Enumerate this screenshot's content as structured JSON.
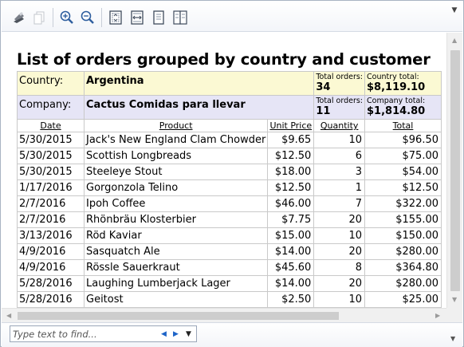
{
  "toolbar": {
    "buttons": [
      "print-icon",
      "copy-icon",
      "zoom-in-icon",
      "zoom-out-icon",
      "one-page-view-icon",
      "page-width-icon",
      "single-page-icon",
      "two-page-icon"
    ],
    "accent_color": "#2e5e9e"
  },
  "report": {
    "title": "List of orders grouped by country and customer",
    "country": {
      "label": "Country:",
      "name": "Argentina",
      "total_orders_label": "Total orders:",
      "total_orders": "34",
      "country_total_label": "Country total:",
      "country_total": "$8,119.10"
    },
    "company": {
      "label": "Company:",
      "name": "Cactus Comidas para llevar",
      "total_orders_label": "Total orders:",
      "total_orders": "11",
      "company_total_label": "Company total:",
      "company_total": "$1,814.80"
    },
    "columns": {
      "date": "Date",
      "product": "Product",
      "unit_price": "Unit Price",
      "quantity": "Quantity",
      "total": "Total"
    },
    "rows": [
      {
        "date": "5/30/2015",
        "product": "Jack's New England Clam Chowder",
        "unit_price": "$9.65",
        "quantity": "10",
        "total": "$96.50"
      },
      {
        "date": "5/30/2015",
        "product": "Scottish Longbreads",
        "unit_price": "$12.50",
        "quantity": "6",
        "total": "$75.00"
      },
      {
        "date": "5/30/2015",
        "product": "Steeleye Stout",
        "unit_price": "$18.00",
        "quantity": "3",
        "total": "$54.00"
      },
      {
        "date": "1/17/2016",
        "product": "Gorgonzola Telino",
        "unit_price": "$12.50",
        "quantity": "1",
        "total": "$12.50"
      },
      {
        "date": "2/7/2016",
        "product": "Ipoh Coffee",
        "unit_price": "$46.00",
        "quantity": "7",
        "total": "$322.00"
      },
      {
        "date": "2/7/2016",
        "product": "Rhönbräu Klosterbier",
        "unit_price": "$7.75",
        "quantity": "20",
        "total": "$155.00"
      },
      {
        "date": "3/13/2016",
        "product": "Röd Kaviar",
        "unit_price": "$15.00",
        "quantity": "10",
        "total": "$150.00"
      },
      {
        "date": "4/9/2016",
        "product": "Sasquatch Ale",
        "unit_price": "$14.00",
        "quantity": "20",
        "total": "$280.00"
      },
      {
        "date": "4/9/2016",
        "product": "Rössle Sauerkraut",
        "unit_price": "$45.60",
        "quantity": "8",
        "total": "$364.80"
      },
      {
        "date": "5/28/2016",
        "product": "Laughing Lumberjack Lager",
        "unit_price": "$14.00",
        "quantity": "20",
        "total": "$280.00"
      },
      {
        "date": "5/28/2016",
        "product": "Geitost",
        "unit_price": "$2.50",
        "quantity": "10",
        "total": "$25.00"
      }
    ]
  },
  "findbar": {
    "placeholder": "Type text to find...",
    "value": ""
  }
}
